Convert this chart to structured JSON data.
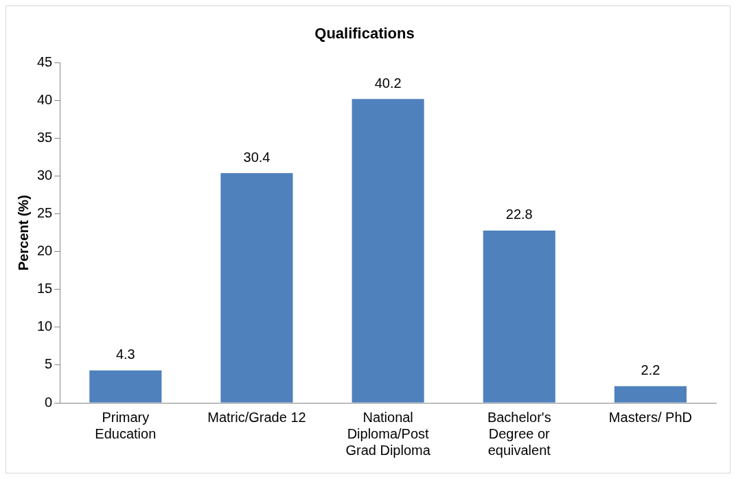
{
  "chart_data": {
    "type": "bar",
    "title": "Qualifications",
    "ylabel": "Percent (%)",
    "categories": [
      "Primary Education",
      "Matric/Grade 12",
      "National Diploma/Post Grad Diploma",
      "Bachelor's Degree or equivalent",
      "Masters/ PhD"
    ],
    "values": [
      4.3,
      30.4,
      40.2,
      22.8,
      2.2
    ],
    "color": "#4f81bd",
    "ylim": [
      0,
      45
    ],
    "yticks": [
      0,
      5,
      10,
      15,
      20,
      25,
      30,
      35,
      40,
      45
    ],
    "grid": false,
    "legend": false,
    "data_labels": true
  }
}
